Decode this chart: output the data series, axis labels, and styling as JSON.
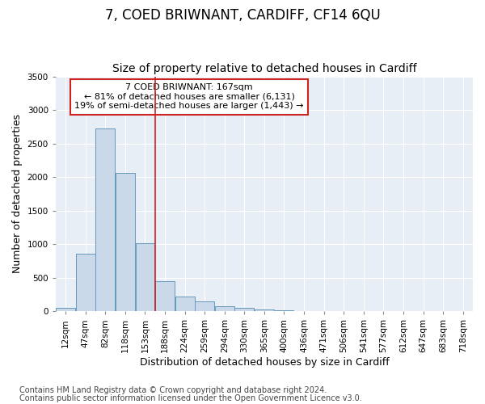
{
  "title": "7, COED BRIWNANT, CARDIFF, CF14 6QU",
  "subtitle": "Size of property relative to detached houses in Cardiff",
  "xlabel": "Distribution of detached houses by size in Cardiff",
  "ylabel": "Number of detached properties",
  "footnote1": "Contains HM Land Registry data © Crown copyright and database right 2024.",
  "footnote2": "Contains public sector information licensed under the Open Government Licence v3.0.",
  "annotation_line1": "7 COED BRIWNANT: 167sqm",
  "annotation_line2": "← 81% of detached houses are smaller (6,131)",
  "annotation_line3": "19% of semi-detached houses are larger (1,443) →",
  "bar_color": "#c9d9ea",
  "bar_edge_color": "#6699bb",
  "marker_color": "#cc2222",
  "categories": [
    "12sqm",
    "47sqm",
    "82sqm",
    "118sqm",
    "153sqm",
    "188sqm",
    "224sqm",
    "259sqm",
    "294sqm",
    "330sqm",
    "365sqm",
    "400sqm",
    "436sqm",
    "471sqm",
    "506sqm",
    "541sqm",
    "577sqm",
    "612sqm",
    "647sqm",
    "683sqm",
    "718sqm"
  ],
  "values": [
    55,
    855,
    2730,
    2060,
    1020,
    450,
    215,
    145,
    70,
    55,
    30,
    10,
    5,
    3,
    1,
    0,
    0,
    0,
    0,
    0,
    0
  ],
  "ylim": [
    0,
    3500
  ],
  "yticks": [
    0,
    500,
    1000,
    1500,
    2000,
    2500,
    3000,
    3500
  ],
  "plot_bg_color": "#e8eef5",
  "title_fontsize": 12,
  "subtitle_fontsize": 10,
  "axis_label_fontsize": 9,
  "tick_fontsize": 7.5,
  "annotation_fontsize": 8,
  "footnote_fontsize": 7
}
